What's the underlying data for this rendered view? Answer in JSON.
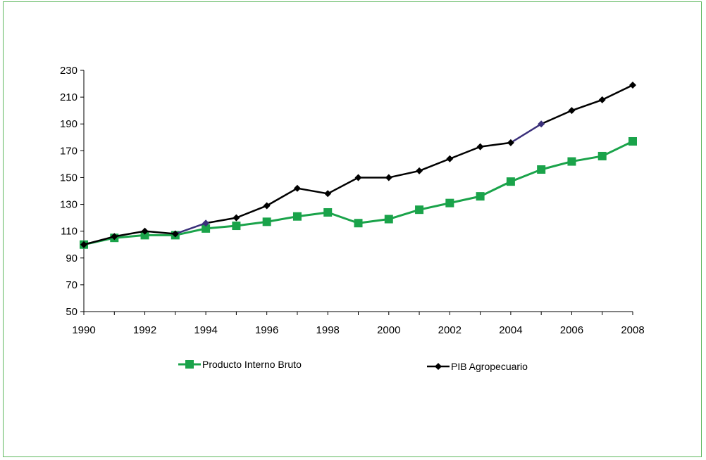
{
  "chart_data": {
    "type": "line",
    "x": [
      1990,
      1991,
      1992,
      1993,
      1994,
      1995,
      1996,
      1997,
      1998,
      1999,
      2000,
      2001,
      2002,
      2003,
      2004,
      2005,
      2006,
      2007,
      2008
    ],
    "x_tick_labels": [
      "1990",
      "1992",
      "1994",
      "1996",
      "1998",
      "2000",
      "2002",
      "2004",
      "2006",
      "2008"
    ],
    "y_tick_labels": [
      "50",
      "70",
      "90",
      "110",
      "130",
      "150",
      "170",
      "190",
      "210",
      "230"
    ],
    "xlim": [
      1990,
      2008
    ],
    "ylim": [
      50,
      230
    ],
    "xlabel": "",
    "ylabel": "",
    "title": "",
    "grid": false,
    "legend_position": "bottom",
    "series": [
      {
        "name": "Producto Interno Bruto",
        "color": "#1aa34a",
        "marker": "square",
        "values": [
          100,
          105,
          107,
          107,
          112,
          114,
          117,
          121,
          124,
          116,
          119,
          126,
          131,
          136,
          147,
          156,
          162,
          166,
          177
        ]
      },
      {
        "name": "PIB Agropecuario",
        "color": "#000000",
        "highlight_color": "#3a2f7a",
        "marker": "diamond",
        "values": [
          100,
          106,
          110,
          108,
          116,
          120,
          129,
          142,
          138,
          150,
          150,
          155,
          164,
          173,
          176,
          190,
          200,
          208,
          219
        ]
      }
    ]
  }
}
